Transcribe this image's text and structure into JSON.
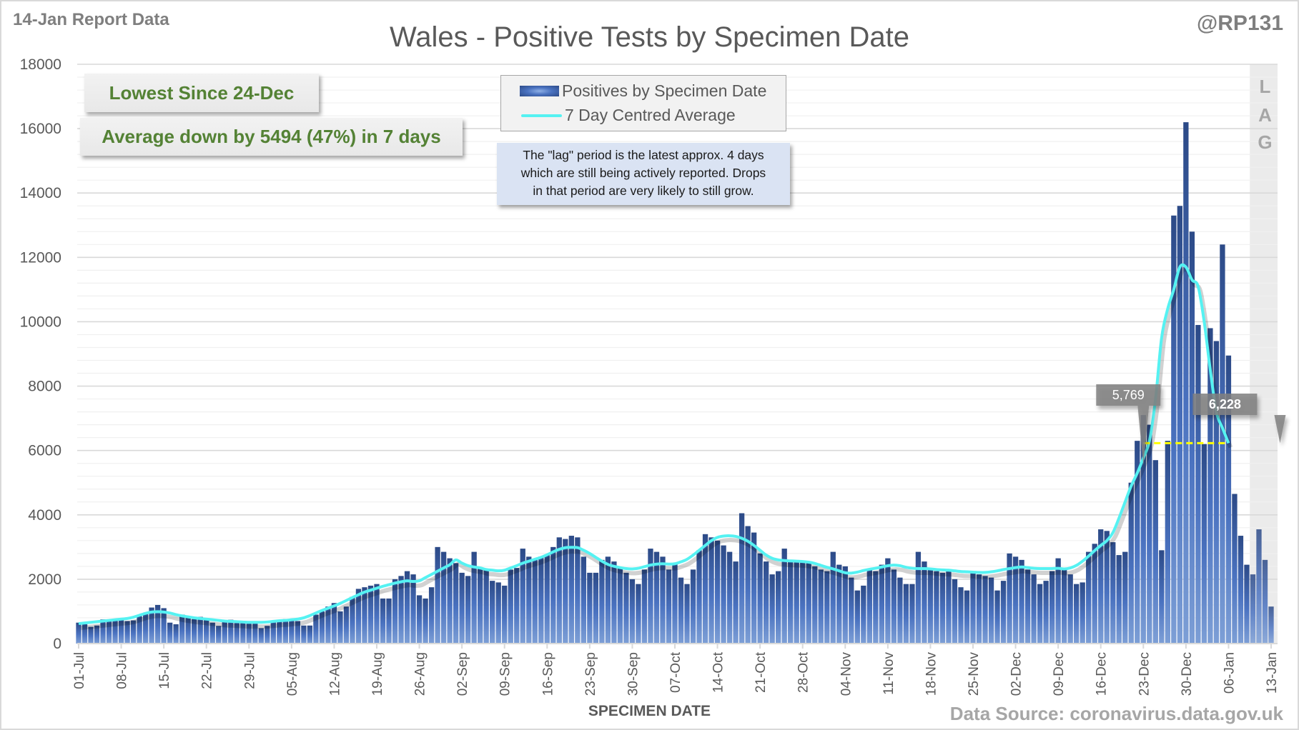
{
  "header": {
    "report_date": "14-Jan Report Data",
    "handle": "@RP131"
  },
  "callouts": {
    "lowest": "Lowest Since 24-Dec",
    "average": "Average down by 5494 (47%) in 7 days"
  },
  "note": {
    "line1": "The \"lag\" period is the latest approx. 4 days",
    "line2": "which are still being actively reported.  Drops",
    "line3": "in that period are very likely to still grow."
  },
  "footer": {
    "data_source": "Data Source: coronavirus.data.gov.uk"
  },
  "lag_label": [
    "L",
    "A",
    "G"
  ],
  "colors": {
    "bar_dark": "#2c4a87",
    "bar_light": "#7d9fd6",
    "avg_line": "#55f2f2",
    "ref_line": "#ffff00",
    "callout_text": "#548235",
    "lag_shade": "#ebebeb",
    "note_bg": "#dae3f3"
  },
  "chart_data": {
    "type": "bar",
    "title": "Wales - Positive Tests by Specimen Date",
    "xlabel": "SPECIMEN DATE",
    "ylabel": "",
    "ylim": [
      0,
      18000
    ],
    "yticks": [
      0,
      2000,
      4000,
      6000,
      8000,
      10000,
      12000,
      14000,
      16000,
      18000
    ],
    "grid": true,
    "x_start": "01-Jul",
    "x_end": "13-Jan",
    "xtick_labels": [
      "01-Jul",
      "08-Jul",
      "15-Jul",
      "22-Jul",
      "29-Jul",
      "05-Aug",
      "12-Aug",
      "19-Aug",
      "26-Aug",
      "02-Sep",
      "09-Sep",
      "16-Sep",
      "23-Sep",
      "30-Sep",
      "07-Oct",
      "14-Oct",
      "21-Oct",
      "28-Oct",
      "04-Nov",
      "11-Nov",
      "18-Nov",
      "25-Nov",
      "02-Dec",
      "09-Dec",
      "16-Dec",
      "23-Dec",
      "30-Dec",
      "06-Jan",
      "13-Jan"
    ],
    "legend": {
      "position": "top-center",
      "entries": [
        "Positives by Specimen Date",
        "7 Day Centred Average"
      ]
    },
    "lag_days": 4,
    "series": [
      {
        "name": "Positives by Specimen Date",
        "type": "bar",
        "values": [
          650,
          600,
          520,
          560,
          750,
          720,
          740,
          760,
          700,
          720,
          850,
          960,
          1120,
          1200,
          1100,
          650,
          600,
          900,
          800,
          760,
          830,
          760,
          650,
          550,
          700,
          740,
          640,
          650,
          620,
          620,
          480,
          550,
          720,
          700,
          760,
          760,
          700,
          560,
          560,
          900,
          1000,
          1150,
          1260,
          1000,
          1150,
          1450,
          1700,
          1750,
          1800,
          1850,
          1400,
          1400,
          2000,
          2100,
          2250,
          2150,
          1500,
          1400,
          1750,
          3000,
          2850,
          2650,
          2500,
          2200,
          2100,
          2850,
          2350,
          2300,
          1950,
          1900,
          1800,
          2300,
          2350,
          2950,
          2700,
          2600,
          2700,
          2750,
          3000,
          3300,
          3250,
          3350,
          3300,
          2700,
          2200,
          2200,
          2600,
          2700,
          2550,
          2350,
          2200,
          2000,
          1850,
          2300,
          2950,
          2850,
          2700,
          2300,
          2500,
          2050,
          1850,
          2300,
          2900,
          3400,
          3300,
          3200,
          3050,
          2850,
          2550,
          4050,
          3650,
          3450,
          2800,
          2550,
          2150,
          2250,
          2950,
          2550,
          2550,
          2550,
          2500,
          2400,
          2300,
          2250,
          2850,
          2450,
          2400,
          2050,
          1650,
          1800,
          2300,
          2250,
          2450,
          2650,
          2300,
          2050,
          1850,
          1850,
          2850,
          2550,
          2350,
          2250,
          2200,
          2300,
          2000,
          1750,
          1650,
          2250,
          2150,
          2100,
          2050,
          1650,
          1950,
          2800,
          2700,
          2600,
          2300,
          2150,
          1850,
          1950,
          2250,
          2650,
          2300,
          2150,
          1850,
          1900,
          2850,
          3100,
          3550,
          3500,
          3150,
          2750,
          2850,
          5000,
          6300,
          7100,
          6800,
          5700,
          2900,
          6300,
          13300,
          13600,
          16200,
          12800,
          9900,
          6200,
          9800,
          9400,
          12400,
          8950,
          4650,
          3350,
          2450,
          2150,
          3550,
          2600,
          1150
        ]
      },
      {
        "name": "7 Day Centred Average",
        "type": "line",
        "values": [
          620,
          640,
          660,
          680,
          700,
          720,
          740,
          760,
          780,
          820,
          880,
          940,
          980,
          990,
          980,
          950,
          900,
          860,
          830,
          800,
          780,
          760,
          740,
          720,
          700,
          690,
          680,
          670,
          660,
          660,
          660,
          670,
          690,
          710,
          720,
          740,
          760,
          800,
          870,
          950,
          1030,
          1100,
          1170,
          1250,
          1340,
          1430,
          1520,
          1600,
          1660,
          1720,
          1780,
          1830,
          1880,
          1920,
          1950,
          1930,
          1950,
          2050,
          2150,
          2250,
          2350,
          2450,
          2600,
          2500,
          2420,
          2380,
          2350,
          2300,
          2280,
          2260,
          2280,
          2350,
          2420,
          2500,
          2560,
          2620,
          2680,
          2760,
          2850,
          2930,
          2980,
          2990,
          2980,
          2900,
          2800,
          2680,
          2560,
          2460,
          2400,
          2360,
          2330,
          2320,
          2340,
          2390,
          2440,
          2470,
          2480,
          2470,
          2480,
          2540,
          2620,
          2750,
          2900,
          3050,
          3200,
          3300,
          3340,
          3350,
          3330,
          3270,
          3180,
          3050,
          2900,
          2750,
          2650,
          2600,
          2580,
          2570,
          2560,
          2550,
          2530,
          2490,
          2430,
          2370,
          2320,
          2260,
          2200,
          2190,
          2220,
          2270,
          2310,
          2340,
          2380,
          2420,
          2440,
          2420,
          2370,
          2340,
          2330,
          2330,
          2320,
          2300,
          2290,
          2280,
          2260,
          2240,
          2230,
          2220,
          2210,
          2210,
          2230,
          2260,
          2300,
          2330,
          2360,
          2380,
          2360,
          2340,
          2330,
          2330,
          2330,
          2340,
          2320,
          2350,
          2430,
          2560,
          2720,
          2890,
          3050,
          3200,
          3450,
          3900,
          4400,
          4900,
          5300,
          5769,
          6300,
          7600,
          9500,
          10400,
          11000,
          11700,
          11700,
          11300,
          11100,
          10000,
          8500,
          7200,
          6700,
          6228
        ]
      }
    ],
    "annotations": [
      {
        "label": "5,769",
        "date": "23-Dec",
        "value": 5769
      },
      {
        "label": "6,228",
        "date": "06-Jan",
        "value": 6228
      }
    ],
    "reference_line": {
      "from": "23-Dec",
      "to": "06-Jan",
      "value": 6228,
      "style": "dashed"
    }
  }
}
